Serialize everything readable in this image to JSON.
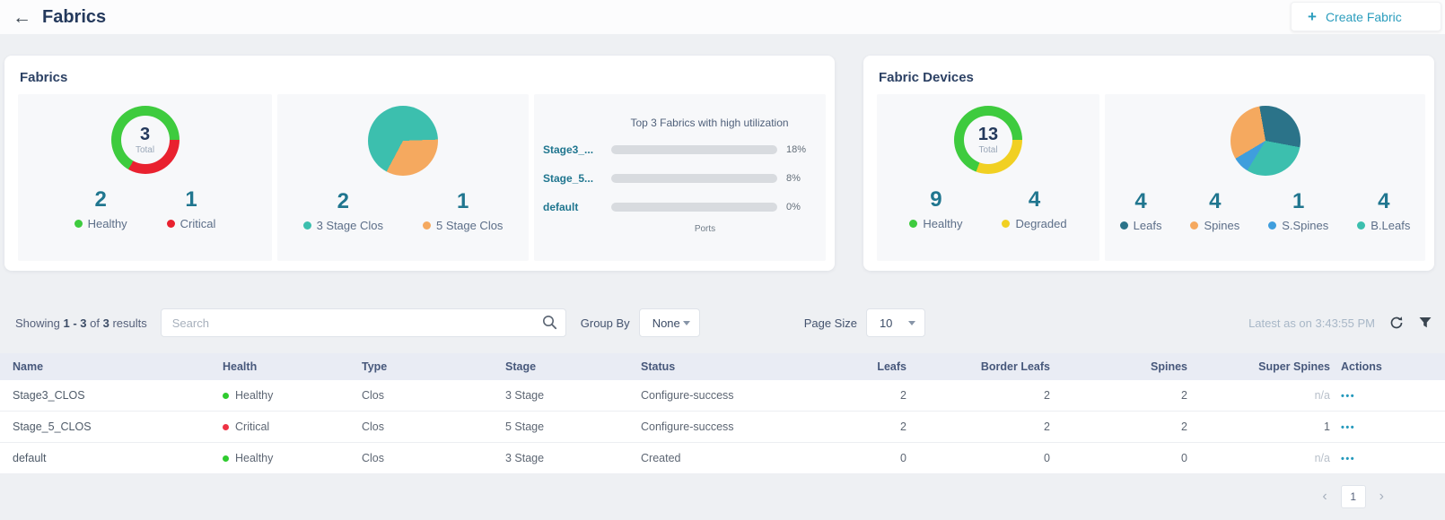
{
  "header": {
    "title": "Fabrics",
    "create_button": {
      "plus": "+",
      "label": "Create Fabric"
    }
  },
  "cards": {
    "fabrics": {
      "title": "Fabrics",
      "donut": {
        "center_value": "3",
        "center_label": "Total",
        "start_angle": 90,
        "segments": [
          {
            "label": "Critical",
            "value": 1,
            "color": "#e9212f"
          },
          {
            "label": "Healthy",
            "value": 2,
            "color": "#3ecb3e"
          }
        ],
        "stats": [
          {
            "value": "2",
            "label": "Healthy",
            "color": "#3ecb3e"
          },
          {
            "value": "1",
            "label": "Critical",
            "color": "#e9212f"
          }
        ]
      },
      "pie": {
        "start_angle": 88,
        "segments": [
          {
            "label": "5 Stage Clos",
            "value": 1,
            "color": "#f5a95f"
          },
          {
            "label": "3 Stage Clos",
            "value": 2,
            "color": "#3cbfae"
          }
        ],
        "stats": [
          {
            "value": "2",
            "label": "3 Stage Clos",
            "color": "#3cbfae"
          },
          {
            "value": "1",
            "label": "5 Stage Clos",
            "color": "#f5a95f"
          }
        ]
      },
      "utilization": {
        "title": "Top 3 Fabrics with high utilization",
        "xlabel": "Ports",
        "bar_color": "#3ecb3e",
        "bars": [
          {
            "label": "Stage3_...",
            "value": 18,
            "pct": "18%"
          },
          {
            "label": "Stage_5...",
            "value": 8,
            "pct": "8%"
          },
          {
            "label": "default",
            "value": 0,
            "pct": "0%"
          }
        ]
      }
    },
    "devices": {
      "title": "Fabric Devices",
      "donut": {
        "center_value": "13",
        "center_label": "Total",
        "start_angle": 90,
        "segments": [
          {
            "label": "Degraded",
            "value": 4,
            "color": "#f1d022"
          },
          {
            "label": "Healthy",
            "value": 9,
            "color": "#3ecb3e"
          }
        ],
        "stats": [
          {
            "value": "9",
            "label": "Healthy",
            "color": "#3ecb3e"
          },
          {
            "value": "4",
            "label": "Degraded",
            "color": "#f1d022"
          }
        ]
      },
      "pie": {
        "start_angle": -10,
        "segments": [
          {
            "label": "Leafs",
            "value": 4,
            "color": "#2b7389"
          },
          {
            "label": "B.Leafs",
            "value": 4,
            "color": "#3cbfae"
          },
          {
            "label": "S.Spines",
            "value": 1,
            "color": "#3f9edd"
          },
          {
            "label": "Spines",
            "value": 4,
            "color": "#f5a95f"
          }
        ],
        "stats": [
          {
            "value": "4",
            "label": "Leafs",
            "color": "#2b7389"
          },
          {
            "value": "4",
            "label": "Spines",
            "color": "#f5a95f"
          },
          {
            "value": "1",
            "label": "S.Spines",
            "color": "#3f9edd"
          },
          {
            "value": "4",
            "label": "B.Leafs",
            "color": "#3cbfae"
          }
        ]
      }
    }
  },
  "toolbar": {
    "showing": {
      "pre": "Showing",
      "range": "1 - 3",
      "mid": "of",
      "count": "3",
      "post": "results"
    },
    "search_placeholder": "Search",
    "group_by_label": "Group By",
    "group_by_value": "None",
    "page_size_label": "Page Size",
    "page_size_value": "10",
    "latest": "Latest as on 3:43:55 PM"
  },
  "table": {
    "columns": [
      "Name",
      "Health",
      "Type",
      "Stage",
      "Status",
      "Leafs",
      "Border Leafs",
      "Spines",
      "Super Spines",
      "Actions"
    ],
    "actions_glyph": "•••",
    "rows": [
      {
        "name": "Stage3_CLOS",
        "health": "Healthy",
        "health_color": "#2fcb2f",
        "type": "Clos",
        "stage": "3 Stage",
        "status": "Configure-success",
        "leafs": "2",
        "border_leafs": "2",
        "spines": "2",
        "super_spines": "n/a",
        "super_spines_muted": true
      },
      {
        "name": "Stage_5_CLOS",
        "health": "Critical",
        "health_color": "#ee3344",
        "type": "Clos",
        "stage": "5 Stage",
        "status": "Configure-success",
        "leafs": "2",
        "border_leafs": "2",
        "spines": "2",
        "super_spines": "1",
        "super_spines_muted": false
      },
      {
        "name": "default",
        "health": "Healthy",
        "health_color": "#2fcb2f",
        "type": "Clos",
        "stage": "3 Stage",
        "status": "Created",
        "leafs": "0",
        "border_leafs": "0",
        "spines": "0",
        "super_spines": "n/a",
        "super_spines_muted": true
      }
    ]
  },
  "pagination": {
    "prev": "‹",
    "page": "1",
    "next": "›"
  }
}
